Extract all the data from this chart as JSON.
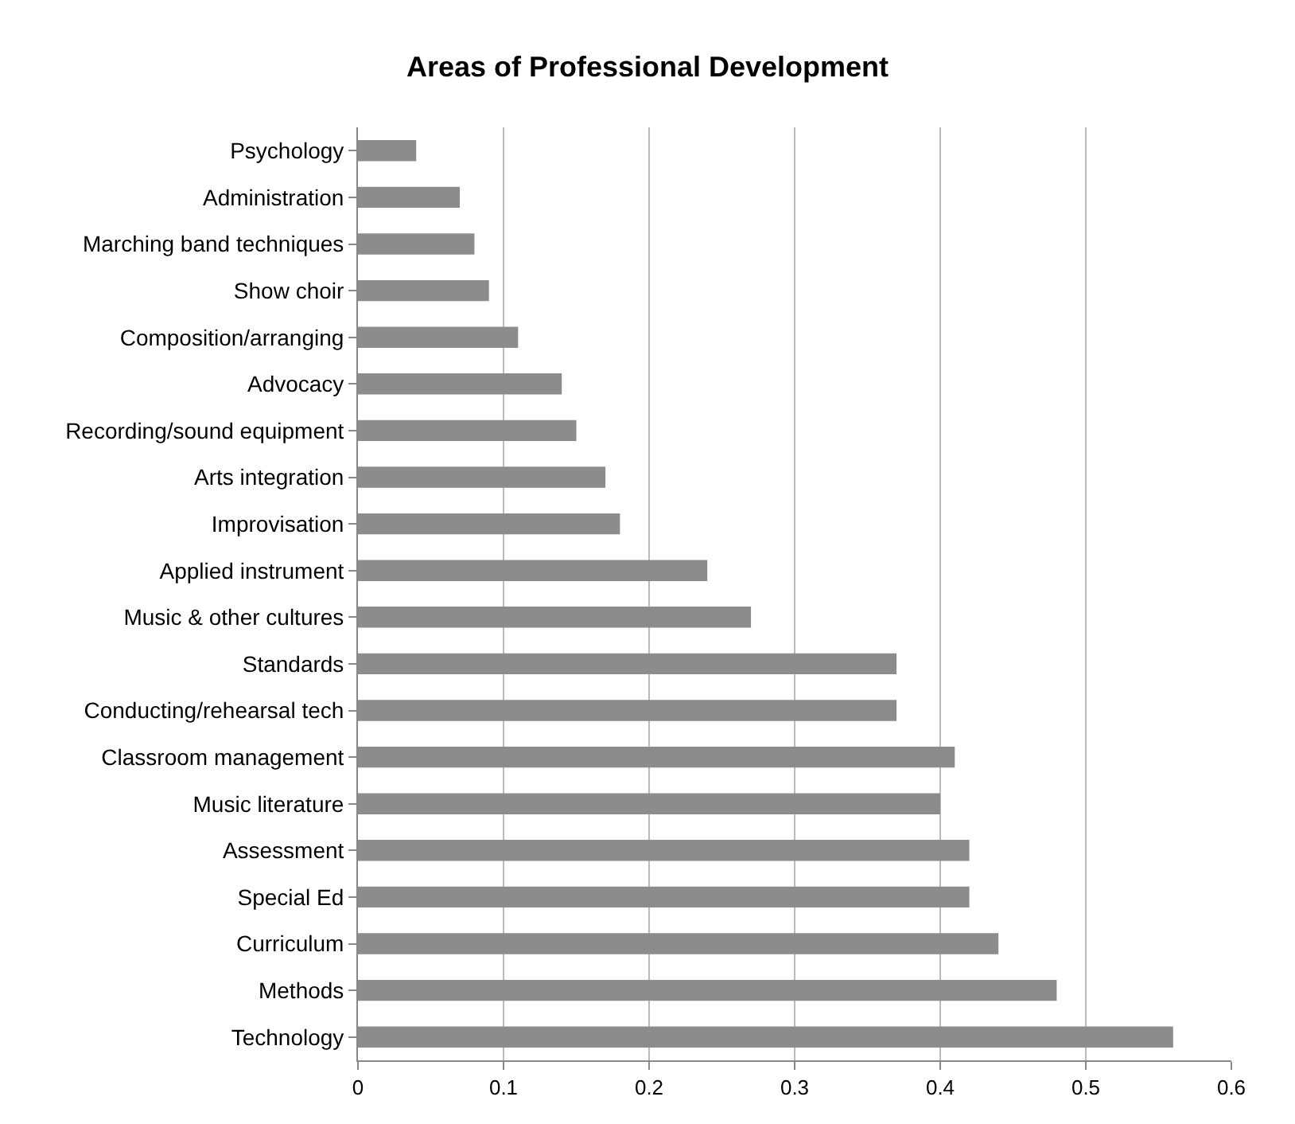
{
  "chart_data": {
    "type": "bar",
    "orientation": "horizontal",
    "title": "Areas of Professional Development",
    "categories": [
      "Psychology",
      "Administration",
      "Marching band techniques",
      "Show choir",
      "Composition/arranging",
      "Advocacy",
      "Recording/sound equipment",
      "Arts integration",
      "Improvisation",
      "Applied instrument",
      "Music & other cultures",
      "Standards",
      "Conducting/rehearsal tech",
      "Classroom management",
      "Music literature",
      "Assessment",
      "Special Ed",
      "Curriculum",
      "Methods",
      "Technology"
    ],
    "values": [
      0.04,
      0.07,
      0.08,
      0.09,
      0.11,
      0.14,
      0.15,
      0.17,
      0.18,
      0.24,
      0.27,
      0.37,
      0.37,
      0.41,
      0.4,
      0.42,
      0.42,
      0.44,
      0.48,
      0.56
    ],
    "color": "#8c8c8c",
    "xlim": [
      0,
      0.6
    ],
    "xticks": [
      0,
      0.1,
      0.2,
      0.3,
      0.4,
      0.5,
      0.6
    ],
    "grid": "x"
  }
}
